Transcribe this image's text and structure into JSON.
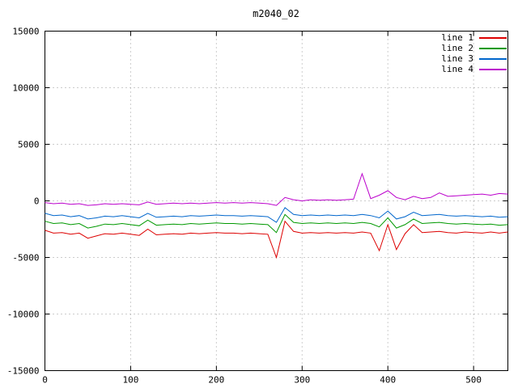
{
  "chart_data": {
    "type": "line",
    "title": "m2040_02",
    "xlabel": "",
    "ylabel": "",
    "xlim": [
      0,
      540
    ],
    "ylim": [
      -15000,
      15000
    ],
    "x_ticks": [
      0,
      100,
      200,
      300,
      400,
      500
    ],
    "y_ticks": [
      -15000,
      -10000,
      -5000,
      0,
      5000,
      10000,
      15000
    ],
    "grid": true,
    "grid_style": "dotted",
    "grid_color": "#9a9a9a",
    "border_color": "#000000",
    "background_color": "#ffffff",
    "legend_position": "top-right-inside",
    "x_start": 0,
    "x_step": 10,
    "series": [
      {
        "name": "line 1",
        "color": "#dd0000",
        "values": [
          -2600,
          -2850,
          -2800,
          -2950,
          -2850,
          -3300,
          -3100,
          -2900,
          -2950,
          -2850,
          -2950,
          -3050,
          -2500,
          -3000,
          -2950,
          -2900,
          -2950,
          -2850,
          -2900,
          -2850,
          -2800,
          -2850,
          -2850,
          -2900,
          -2850,
          -2900,
          -2950,
          -5000,
          -1800,
          -2700,
          -2850,
          -2800,
          -2850,
          -2800,
          -2850,
          -2800,
          -2850,
          -2750,
          -2850,
          -4400,
          -2100,
          -4300,
          -2900,
          -2100,
          -2800,
          -2750,
          -2700,
          -2800,
          -2850,
          -2750,
          -2800,
          -2850,
          -2750,
          -2850,
          -2750
        ]
      },
      {
        "name": "line 2",
        "color": "#009900",
        "values": [
          -1800,
          -2000,
          -1950,
          -2100,
          -2000,
          -2400,
          -2250,
          -2050,
          -2100,
          -2000,
          -2100,
          -2200,
          -1700,
          -2150,
          -2100,
          -2050,
          -2100,
          -2000,
          -2050,
          -2000,
          -1950,
          -2000,
          -2000,
          -2050,
          -2000,
          -2050,
          -2100,
          -2800,
          -1200,
          -1900,
          -2000,
          -1950,
          -2000,
          -1950,
          -2000,
          -1950,
          -2000,
          -1900,
          -2000,
          -2300,
          -1500,
          -2400,
          -2100,
          -1600,
          -2000,
          -1950,
          -1900,
          -2000,
          -2050,
          -2000,
          -2050,
          -2100,
          -2050,
          -2150,
          -2100
        ]
      },
      {
        "name": "line 3",
        "color": "#0066cc",
        "values": [
          -1100,
          -1300,
          -1250,
          -1400,
          -1300,
          -1600,
          -1500,
          -1350,
          -1400,
          -1300,
          -1400,
          -1500,
          -1100,
          -1450,
          -1400,
          -1350,
          -1400,
          -1300,
          -1350,
          -1300,
          -1250,
          -1300,
          -1300,
          -1350,
          -1300,
          -1350,
          -1400,
          -1900,
          -600,
          -1200,
          -1300,
          -1250,
          -1300,
          -1250,
          -1300,
          -1250,
          -1300,
          -1200,
          -1300,
          -1500,
          -900,
          -1600,
          -1400,
          -1000,
          -1300,
          -1250,
          -1200,
          -1300,
          -1350,
          -1300,
          -1350,
          -1400,
          -1350,
          -1450,
          -1400
        ]
      },
      {
        "name": "line 4",
        "color": "#bb00cc",
        "values": [
          -150,
          -250,
          -200,
          -300,
          -250,
          -400,
          -350,
          -250,
          -300,
          -250,
          -300,
          -350,
          -100,
          -300,
          -250,
          -200,
          -250,
          -200,
          -250,
          -200,
          -150,
          -200,
          -150,
          -200,
          -150,
          -200,
          -250,
          -400,
          300,
          100,
          0,
          100,
          50,
          100,
          50,
          100,
          150,
          2400,
          200,
          500,
          900,
          300,
          100,
          400,
          200,
          300,
          700,
          400,
          450,
          500,
          550,
          600,
          500,
          650,
          600
        ]
      }
    ]
  }
}
